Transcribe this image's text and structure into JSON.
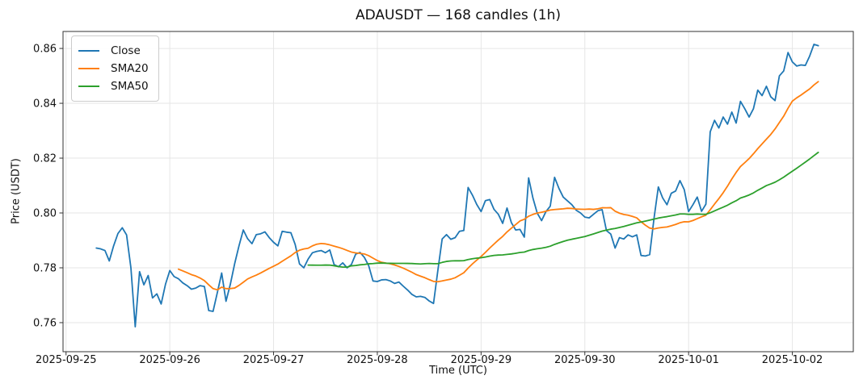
{
  "title": "ADAUSDT — 168 candles (1h)",
  "axes": {
    "xlabel": "Time (UTC)",
    "ylabel": "Price (USDT)",
    "x_tick_labels": [
      "2025-09-25",
      "2025-09-26",
      "2025-09-27",
      "2025-09-28",
      "2025-09-29",
      "2025-09-30",
      "2025-10-01",
      "2025-10-02"
    ],
    "x_tick_hours": [
      0,
      24,
      48,
      72,
      96,
      120,
      144,
      168
    ],
    "y_ticks": [
      0.76,
      0.78,
      0.8,
      0.82,
      0.84,
      0.86
    ],
    "x_range_hours": [
      -0.7,
      182.1
    ],
    "y_range": [
      0.7494,
      0.8662
    ],
    "grid": true,
    "grid_color": "#e6e6e6",
    "spine_color": "#333333"
  },
  "legend": {
    "position": "upper-left",
    "items": [
      {
        "label": "Close",
        "color": "#1f77b4"
      },
      {
        "label": "SMA20",
        "color": "#ff7f0e"
      },
      {
        "label": "SMA50",
        "color": "#2ca02c"
      }
    ]
  },
  "chart_data": {
    "type": "line",
    "symbol": "ADAUSDT",
    "interval": "1h",
    "candle_count": 168,
    "x_start_offset_hours": 7,
    "x_step_hours": 1,
    "close_color": "#1f77b4",
    "overlays": [
      {
        "name": "SMA20",
        "period": 20,
        "color": "#ff7f0e"
      },
      {
        "name": "SMA50",
        "period": 50,
        "color": "#2ca02c"
      }
    ],
    "close": [
      0.7872,
      0.7869,
      0.7863,
      0.7825,
      0.788,
      0.7925,
      0.7946,
      0.792,
      0.78,
      0.7585,
      0.7786,
      0.7738,
      0.7772,
      0.769,
      0.7705,
      0.7668,
      0.774,
      0.779,
      0.7768,
      0.776,
      0.7745,
      0.7735,
      0.7722,
      0.7726,
      0.7735,
      0.7732,
      0.7644,
      0.7641,
      0.771,
      0.7781,
      0.7678,
      0.774,
      0.7815,
      0.788,
      0.7938,
      0.7906,
      0.7888,
      0.7921,
      0.7924,
      0.7931,
      0.791,
      0.7893,
      0.788,
      0.7933,
      0.793,
      0.7928,
      0.7885,
      0.7814,
      0.78,
      0.7832,
      0.7855,
      0.786,
      0.7863,
      0.7855,
      0.7865,
      0.7812,
      0.7804,
      0.7818,
      0.78,
      0.7812,
      0.785,
      0.7856,
      0.7838,
      0.7808,
      0.7752,
      0.775,
      0.7756,
      0.7757,
      0.7752,
      0.7743,
      0.7748,
      0.7733,
      0.7719,
      0.7703,
      0.7694,
      0.7696,
      0.7692,
      0.7679,
      0.767,
      0.779,
      0.7905,
      0.7921,
      0.7904,
      0.791,
      0.7933,
      0.7936,
      0.8093,
      0.8065,
      0.8031,
      0.8005,
      0.8045,
      0.8049,
      0.8013,
      0.7995,
      0.7962,
      0.8018,
      0.7965,
      0.7938,
      0.794,
      0.7912,
      0.8128,
      0.8054,
      0.7999,
      0.7972,
      0.8005,
      0.8025,
      0.813,
      0.809,
      0.8058,
      0.8044,
      0.803,
      0.801,
      0.8,
      0.7985,
      0.7982,
      0.7995,
      0.8008,
      0.8012,
      0.7936,
      0.7923,
      0.7872,
      0.791,
      0.7905,
      0.792,
      0.7913,
      0.792,
      0.7845,
      0.7843,
      0.7848,
      0.798,
      0.8095,
      0.8055,
      0.803,
      0.8072,
      0.808,
      0.8118,
      0.8085,
      0.8005,
      0.803,
      0.8058,
      0.8006,
      0.8032,
      0.8296,
      0.8338,
      0.831,
      0.835,
      0.8324,
      0.8368,
      0.8328,
      0.8407,
      0.838,
      0.835,
      0.838,
      0.8448,
      0.8428,
      0.8462,
      0.8424,
      0.841,
      0.85,
      0.8518,
      0.8585,
      0.8551,
      0.8536,
      0.854,
      0.8538,
      0.8572,
      0.8615,
      0.861
    ]
  }
}
